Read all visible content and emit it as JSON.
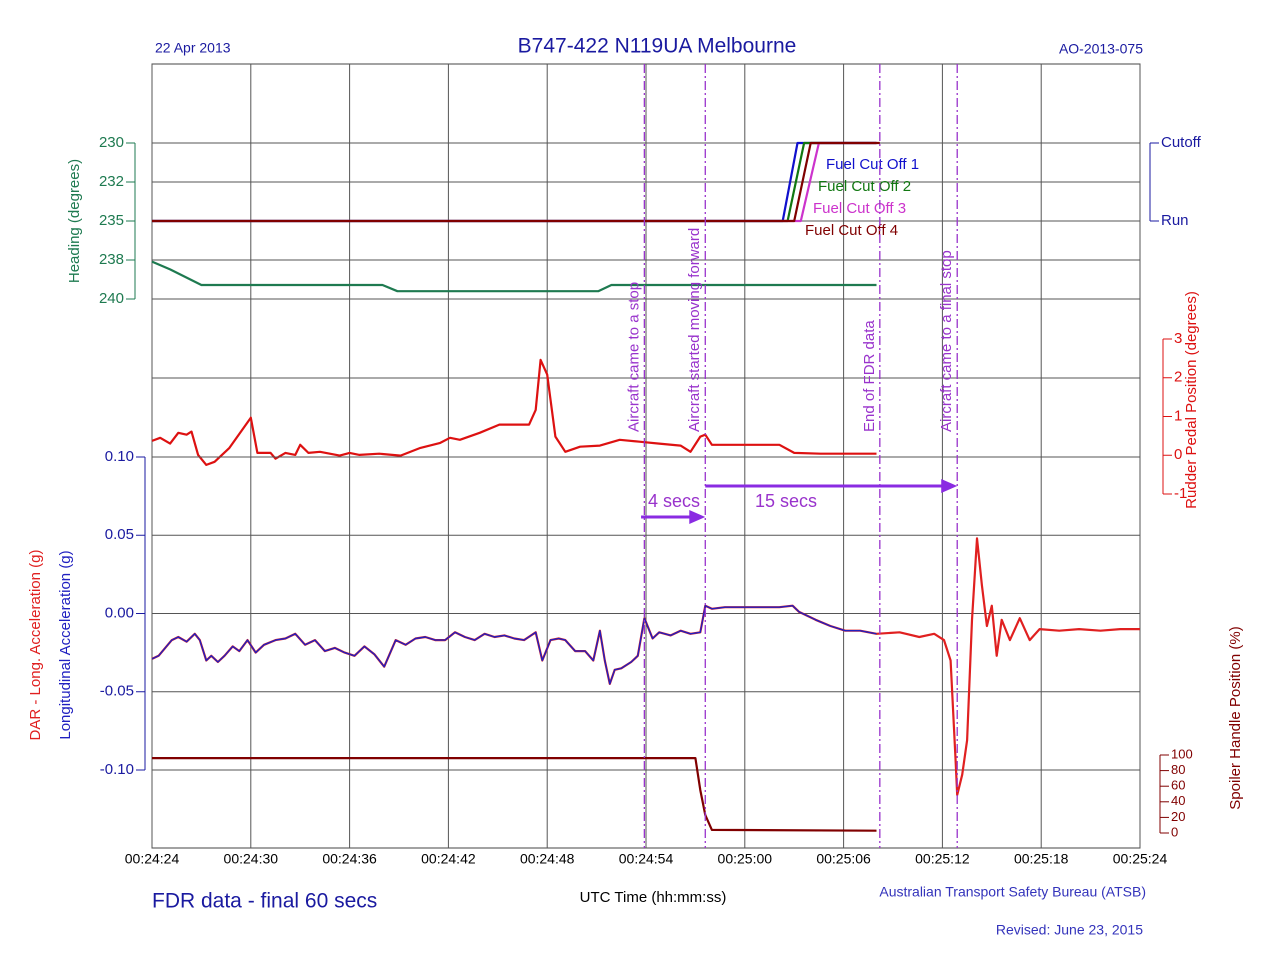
{
  "date": "22 Apr 2013",
  "title": "B747-422 N119UA Melbourne",
  "report": "AO-2013-075",
  "subtitle": "FDR data - final 60 secs",
  "xlabel": "UTC Time (hh:mm:ss)",
  "source": "Australian Transport Safety Bureau (ATSB)",
  "revised": "Revised: June 23, 2015",
  "xlim": [
    1464,
    1524
  ],
  "xticks": [
    {
      "value": 1464,
      "label": "00:24:24"
    },
    {
      "value": 1470,
      "label": "00:24:30"
    },
    {
      "value": 1476,
      "label": "00:24:36"
    },
    {
      "value": 1482,
      "label": "00:24:42"
    },
    {
      "value": 1488,
      "label": "00:24:48"
    },
    {
      "value": 1494,
      "label": "00:24:54"
    },
    {
      "value": 1500,
      "label": "00:25:00"
    },
    {
      "value": 1506,
      "label": "00:25:06"
    },
    {
      "value": 1512,
      "label": "00:25:12"
    },
    {
      "value": 1518,
      "label": "00:25:18"
    },
    {
      "value": 1524,
      "label": "00:25:24"
    }
  ],
  "annotations": {
    "vlines": [
      {
        "text": "Aircraft came to a stop",
        "x": 1493.9
      },
      {
        "text": "Aircraft started moving forward",
        "x": 1497.6
      },
      {
        "text": "End of FDR data",
        "x": 1508.2
      },
      {
        "text": "Aircraft came to a final stop",
        "x": 1512.9
      }
    ],
    "arrows": [
      {
        "text": "4 secs",
        "x": [
          1493.7,
          1497.6
        ]
      },
      {
        "text": "15 secs",
        "x": [
          1497.6,
          1512.9
        ]
      }
    ]
  },
  "chart_data": [
    {
      "type": "line",
      "ylabel": "Heading (degrees)",
      "ylim": [
        240,
        230
      ],
      "yticks": [
        230,
        {
          "value": 232.5,
          "label": "232"
        },
        235,
        {
          "value": 237.5,
          "label": "238"
        },
        240
      ],
      "series": [
        {
          "name": "Heading",
          "color": "#1e7a50",
          "x": [
            1464.0,
            1465.1,
            1467.0,
            1478.0,
            1478.9,
            1491.1,
            1491.9,
            1508.0
          ],
          "values": [
            237.6,
            238.1,
            239.1,
            239.1,
            239.5,
            239.5,
            239.1,
            239.1
          ]
        }
      ]
    },
    {
      "type": "line",
      "y2lim": [
        0,
        1
      ],
      "y2ticks": [
        {
          "value": 0,
          "label": "Run"
        },
        {
          "value": 1,
          "label": "Cutoff"
        }
      ],
      "series": [
        {
          "name": "Fuel Cut Off 1",
          "color": "#1010cc",
          "axis": "y2",
          "x": [
            1464.0,
            1502.3,
            1503.2,
            1508.0
          ],
          "values": [
            0,
            0,
            1,
            1
          ]
        },
        {
          "name": "Fuel Cut Off 2",
          "color": "#117711",
          "axis": "y2",
          "x": [
            1464.0,
            1502.6,
            1503.6,
            1508.0
          ],
          "values": [
            0,
            0,
            1,
            1
          ]
        },
        {
          "name": "Fuel Cut Off 3",
          "color": "#cc33cc",
          "axis": "y2",
          "x": [
            1464.0,
            1503.4,
            1504.5,
            1508.0
          ],
          "values": [
            0,
            0,
            1,
            1
          ]
        },
        {
          "name": "Fuel Cut Off 4",
          "color": "#800000",
          "axis": "y2",
          "x": [
            1464.0,
            1503.0,
            1504.0,
            1508.2
          ],
          "values": [
            0,
            0,
            1,
            1
          ]
        }
      ]
    },
    {
      "type": "line",
      "y2label": "Rudder Pedal Position (degrees)",
      "y2lim": [
        -1,
        3
      ],
      "y2ticks": [
        3,
        2,
        1,
        0,
        -1
      ],
      "series": [
        {
          "name": "Rudder Pedal Position",
          "color": "#dd1111",
          "axis": "y2",
          "x": [
            1464.0,
            1464.5,
            1465.1,
            1465.6,
            1466.1,
            1466.4,
            1466.8,
            1467.3,
            1467.8,
            1468.7,
            1470.0,
            1470.4,
            1471.2,
            1471.5,
            1472.1,
            1472.7,
            1473.0,
            1473.5,
            1474.2,
            1475.4,
            1476.0,
            1476.6,
            1477.8,
            1479.1,
            1480.3,
            1481.5,
            1482.1,
            1482.7,
            1483.9,
            1485.1,
            1486.9,
            1487.3,
            1487.6,
            1488.0,
            1488.5,
            1489.1,
            1490.0,
            1491.2,
            1492.4,
            1493.6,
            1494.8,
            1496.1,
            1496.7,
            1497.3,
            1497.6,
            1498.0,
            1499.1,
            1502.1,
            1503.0,
            1504.6,
            1508.0
          ],
          "values": [
            0.37,
            0.45,
            0.3,
            0.58,
            0.53,
            0.61,
            0.01,
            -0.25,
            -0.17,
            0.19,
            0.97,
            0.06,
            0.06,
            -0.09,
            0.06,
            0.01,
            0.27,
            0.06,
            0.09,
            -0.01,
            0.06,
            0.01,
            0.04,
            -0.01,
            0.19,
            0.32,
            0.45,
            0.4,
            0.58,
            0.79,
            0.79,
            1.17,
            2.46,
            2.08,
            0.48,
            0.09,
            0.22,
            0.25,
            0.4,
            0.35,
            0.3,
            0.25,
            0.09,
            0.48,
            0.53,
            0.27,
            0.27,
            0.27,
            0.06,
            0.04,
            0.04
          ]
        }
      ]
    },
    {
      "type": "line",
      "ylim": [
        -0.1,
        0.1
      ],
      "yticks": [
        {
          "value": 0.1,
          "label": "0.10"
        },
        0.05,
        {
          "value": 0,
          "label": "0.00"
        },
        -0.05,
        {
          "value": -0.1,
          "label": "-0.10"
        }
      ],
      "x": [
        1464.0,
        1464.4,
        1464.8,
        1465.2,
        1465.6,
        1466.1,
        1466.6,
        1466.9,
        1467.3,
        1467.6,
        1468.0,
        1468.4,
        1468.9,
        1469.3,
        1469.8,
        1470.3,
        1470.8,
        1471.5,
        1472.1,
        1472.7,
        1473.3,
        1473.9,
        1474.5,
        1475.1,
        1475.7,
        1476.3,
        1476.9,
        1477.5,
        1478.1,
        1478.8,
        1479.4,
        1480.0,
        1480.6,
        1481.2,
        1481.8,
        1482.4,
        1483.0,
        1483.6,
        1484.2,
        1484.8,
        1485.4,
        1486.0,
        1486.6,
        1487.3,
        1487.7,
        1488.2,
        1488.7,
        1489.1,
        1489.7,
        1490.3,
        1490.8,
        1491.2,
        1491.5,
        1491.8,
        1492.1,
        1492.5,
        1493.1,
        1493.5,
        1493.9,
        1494.4,
        1494.8,
        1495.5,
        1496.1,
        1496.7,
        1497.3,
        1497.6,
        1498.0,
        1498.8,
        1499.7,
        1500.9,
        1502.1,
        1502.9,
        1503.3,
        1504.3,
        1505.2,
        1506.1,
        1507.0,
        1508.0,
        1509.4,
        1510.6,
        1511.5,
        1512.1,
        1512.5,
        1512.8,
        1512.9,
        1513.2,
        1513.5,
        1513.8,
        1514.1,
        1514.4,
        1514.7,
        1515.0,
        1515.3,
        1515.6,
        1516.1,
        1516.7,
        1517.3,
        1517.9,
        1519.1,
        1520.3,
        1521.6,
        1522.8,
        1524.0
      ],
      "series": [
        {
          "name": "DAR - Long. Acceleration (g)",
          "color": "#e02020",
          "values": [
            -0.029,
            -0.027,
            -0.022,
            -0.017,
            -0.015,
            -0.018,
            -0.013,
            -0.017,
            -0.03,
            -0.027,
            -0.031,
            -0.027,
            -0.021,
            -0.024,
            -0.017,
            -0.025,
            -0.02,
            -0.017,
            -0.016,
            -0.013,
            -0.02,
            -0.017,
            -0.024,
            -0.022,
            -0.025,
            -0.027,
            -0.021,
            -0.026,
            -0.034,
            -0.017,
            -0.02,
            -0.016,
            -0.015,
            -0.017,
            -0.017,
            -0.012,
            -0.015,
            -0.017,
            -0.013,
            -0.015,
            -0.014,
            -0.016,
            -0.017,
            -0.012,
            -0.03,
            -0.017,
            -0.016,
            -0.017,
            -0.024,
            -0.024,
            -0.03,
            -0.011,
            -0.03,
            -0.045,
            -0.036,
            -0.035,
            -0.031,
            -0.027,
            -0.003,
            -0.016,
            -0.012,
            -0.014,
            -0.011,
            -0.013,
            -0.012,
            0.005,
            0.003,
            0.004,
            0.004,
            0.004,
            0.004,
            0.005,
            0.001,
            -0.004,
            -0.008,
            -0.011,
            -0.011,
            -0.013,
            -0.012,
            -0.015,
            -0.013,
            -0.017,
            -0.03,
            -0.094,
            -0.116,
            -0.103,
            -0.081,
            -0.004,
            0.048,
            0.018,
            -0.008,
            0.005,
            -0.027,
            -0.004,
            -0.017,
            -0.003,
            -0.017,
            -0.01,
            -0.011,
            -0.01,
            -0.011,
            -0.01,
            -0.01
          ]
        },
        {
          "name": "Longitudinal Acceleration (g)",
          "color": "#2020c0",
          "values": [
            -0.029,
            -0.027,
            -0.022,
            -0.017,
            -0.015,
            -0.018,
            -0.013,
            -0.017,
            -0.03,
            -0.027,
            -0.031,
            -0.027,
            -0.021,
            -0.024,
            -0.017,
            -0.025,
            -0.02,
            -0.017,
            -0.016,
            -0.013,
            -0.02,
            -0.017,
            -0.024,
            -0.022,
            -0.025,
            -0.027,
            -0.021,
            -0.026,
            -0.034,
            -0.017,
            -0.02,
            -0.016,
            -0.015,
            -0.017,
            -0.017,
            -0.012,
            -0.015,
            -0.017,
            -0.013,
            -0.015,
            -0.014,
            -0.016,
            -0.017,
            -0.012,
            -0.03,
            -0.017,
            -0.016,
            -0.017,
            -0.024,
            -0.024,
            -0.03,
            -0.011,
            -0.03,
            -0.045,
            -0.036,
            -0.035,
            -0.031,
            -0.027,
            -0.003,
            -0.016,
            -0.012,
            -0.014,
            -0.011,
            -0.013,
            -0.012,
            0.005,
            0.003,
            0.004,
            0.004,
            0.004,
            0.004,
            0.005,
            0.001,
            -0.004,
            -0.008,
            -0.011,
            -0.011,
            -0.013,
            null,
            null,
            null,
            null,
            null,
            null,
            null,
            null,
            null,
            null,
            null,
            null,
            null,
            null,
            null,
            null,
            null,
            null,
            null,
            null,
            null,
            null,
            null,
            null,
            null
          ]
        }
      ]
    },
    {
      "type": "line",
      "y2label": "Spoiler Handle Position (%)",
      "y2lim": [
        0,
        100
      ],
      "y2ticks": [
        100,
        80,
        60,
        40,
        20,
        0
      ],
      "series": [
        {
          "name": "Spoiler Handle Position",
          "color": "#800000",
          "axis": "y2",
          "x": [
            1464.0,
            1497.0,
            1497.3,
            1497.6,
            1498.0,
            1508.0
          ],
          "values": [
            96,
            96,
            55,
            23,
            4,
            3
          ]
        }
      ]
    }
  ]
}
